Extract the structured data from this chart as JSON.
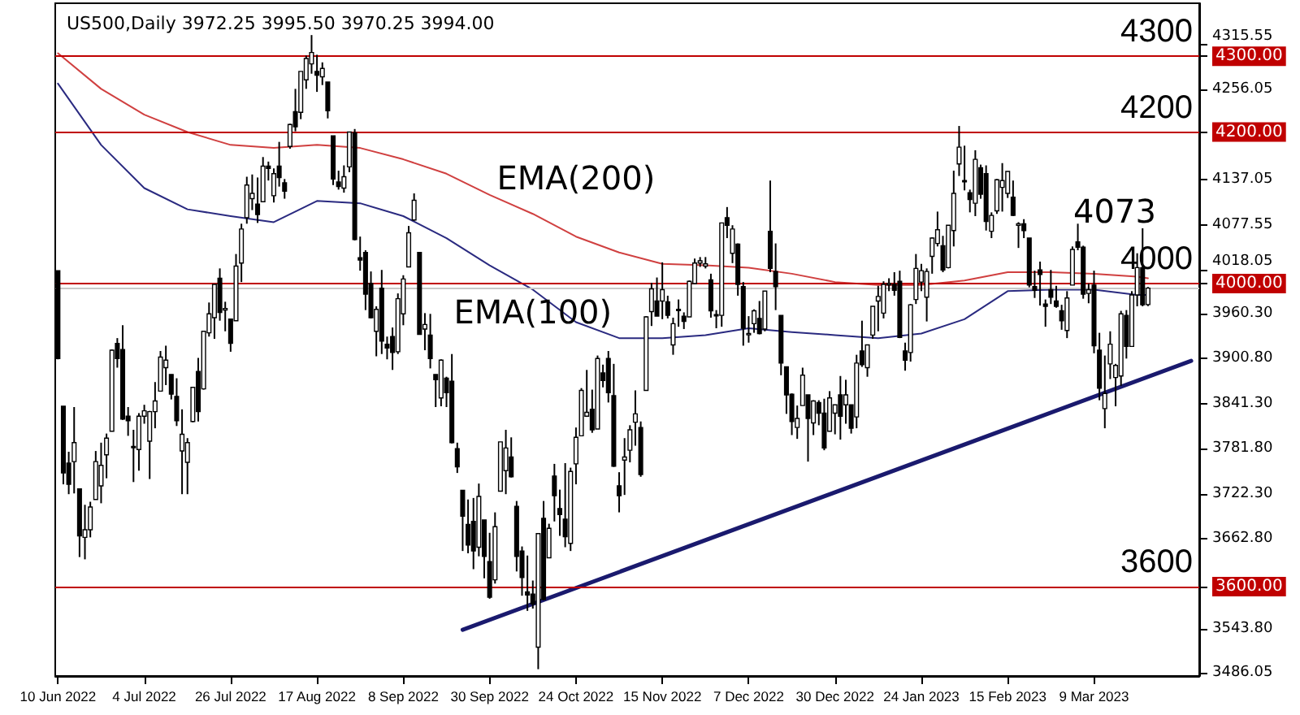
{
  "chart_data": {
    "type": "candlestick",
    "title": "US500,Daily 3972.25 3995.50 3970.25 3994.00",
    "categories": [
      "10 Jun 2022",
      null,
      null,
      null,
      null,
      null,
      null,
      null,
      null,
      null,
      null,
      null,
      null,
      null,
      null,
      null,
      "4 Jul 2022",
      null,
      null,
      null,
      null,
      null,
      null,
      null,
      null,
      null,
      null,
      null,
      null,
      null,
      null,
      null,
      "26 Jul 2022",
      null,
      null,
      null,
      null,
      null,
      null,
      null,
      null,
      null,
      null,
      null,
      null,
      null,
      null,
      null,
      "17 Aug 2022",
      null,
      null,
      null,
      null,
      null,
      null,
      null,
      null,
      null,
      null,
      null,
      null,
      null,
      null,
      null,
      "8 Sep 2022",
      null,
      null,
      null,
      null,
      null,
      null,
      null,
      null,
      null,
      null,
      null,
      null,
      null,
      null,
      null,
      "30 Sep 2022",
      null,
      null,
      null,
      null,
      null,
      null,
      null,
      null,
      null,
      null,
      null,
      null,
      null,
      null,
      null,
      "24 Oct 2022",
      null,
      null,
      null,
      null,
      null,
      null,
      null,
      null,
      null,
      null,
      null,
      null,
      null,
      null,
      null,
      "15 Nov 2022",
      null,
      null,
      null,
      null,
      null,
      null,
      null,
      null,
      null,
      null,
      null,
      null,
      null,
      null,
      null,
      "7 Dec 2022",
      null,
      null,
      null,
      null,
      null,
      null,
      null,
      null,
      null,
      null,
      null,
      null,
      null,
      null,
      null,
      "30 Dec 2022",
      null,
      null,
      null,
      null,
      null,
      null,
      null,
      null,
      null,
      null,
      null,
      null,
      null,
      null,
      null,
      "24 Jan 2023",
      null,
      null,
      null,
      null,
      null,
      null,
      null,
      null,
      null,
      null,
      null,
      null,
      null,
      null,
      null,
      "15 Feb 2023",
      null,
      null,
      null,
      null,
      null,
      null,
      null,
      null,
      null,
      null,
      null,
      null,
      null,
      null,
      null,
      "9 Mar 2023",
      null,
      null,
      null,
      null,
      null,
      null,
      null,
      null,
      null,
      null,
      null,
      null,
      null,
      null,
      null,
      null,
      null,
      null,
      null
    ],
    "ohlc": [
      [
        4017,
        4017,
        3900,
        3901
      ],
      [
        3838,
        3838,
        3735,
        3750
      ],
      [
        3763,
        3778,
        3722,
        3735
      ],
      [
        3765,
        3837,
        3723,
        3790
      ],
      [
        3729,
        3729,
        3639,
        3667
      ],
      [
        3665,
        3708,
        3636,
        3675
      ],
      [
        3675,
        3712,
        3665,
        3705
      ],
      [
        3715,
        3779,
        3715,
        3765
      ],
      [
        3733,
        3790,
        3710,
        3760
      ],
      [
        3774,
        3802,
        3743,
        3796
      ],
      [
        3805,
        3913,
        3805,
        3912
      ],
      [
        3921,
        3928,
        3889,
        3901
      ],
      [
        3913,
        3945,
        3820,
        3821
      ],
      [
        3825,
        3837,
        3799,
        3819
      ],
      [
        3785,
        3807,
        3738,
        3785
      ],
      [
        3781,
        3829,
        3753,
        3825
      ],
      [
        3825,
        3840,
        3815,
        3832
      ],
      [
        3792,
        3832,
        3742,
        3831
      ],
      [
        3831,
        3870,
        3809,
        3845
      ],
      [
        3858,
        3911,
        3858,
        3903
      ],
      [
        3889,
        3918,
        3866,
        3899
      ],
      [
        3880,
        3880,
        3847,
        3854
      ],
      [
        3851,
        3875,
        3812,
        3819
      ],
      [
        3779,
        3834,
        3722,
        3801
      ],
      [
        3764,
        3796,
        3722,
        3790
      ],
      [
        3818,
        3863,
        3817,
        3863
      ],
      [
        3884,
        3902,
        3818,
        3831
      ],
      [
        3861,
        3937,
        3860,
        3937
      ],
      [
        3935,
        3975,
        3930,
        3960
      ],
      [
        3955,
        3999,
        3927,
        3999
      ],
      [
        4007,
        4020,
        3951,
        3962
      ],
      [
        3965,
        3976,
        3937,
        3967
      ],
      [
        3953,
        3953,
        3910,
        3921
      ],
      [
        3951,
        4039,
        3951,
        4023
      ],
      [
        4027,
        4079,
        4002,
        4072
      ],
      [
        4087,
        4141,
        4079,
        4130
      ],
      [
        4112,
        4144,
        4097,
        4119
      ],
      [
        4105,
        4140,
        4080,
        4091
      ],
      [
        4108,
        4167,
        4108,
        4155
      ],
      [
        4155,
        4161,
        4136,
        4152
      ],
      [
        4116,
        4152,
        4107,
        4145
      ],
      [
        4155,
        4187,
        4128,
        4140
      ],
      [
        4133,
        4138,
        4112,
        4122
      ],
      [
        4181,
        4211,
        4178,
        4210
      ],
      [
        4227,
        4257,
        4201,
        4207
      ],
      [
        4226,
        4280,
        4217,
        4280
      ],
      [
        4269,
        4301,
        4257,
        4297
      ],
      [
        4290,
        4328,
        4277,
        4305
      ],
      [
        4280,
        4302,
        4253,
        4275
      ],
      [
        4273,
        4292,
        4262,
        4284
      ],
      [
        4266,
        4266,
        4218,
        4228
      ],
      [
        4195,
        4195,
        4130,
        4138
      ],
      [
        4134,
        4149,
        4124,
        4128
      ],
      [
        4126,
        4156,
        4120,
        4141
      ],
      [
        4154,
        4200,
        4147,
        4200
      ],
      [
        4199,
        4204,
        4057,
        4058
      ],
      [
        4034,
        4062,
        4017,
        4031
      ],
      [
        4041,
        4044,
        3965,
        3986
      ],
      [
        4000,
        4016,
        3954,
        3955
      ],
      [
        3937,
        3970,
        3904,
        3966
      ],
      [
        3994,
        4018,
        3907,
        3924
      ],
      [
        3920,
        3930,
        3900,
        3915
      ],
      [
        3930,
        3942,
        3886,
        3909
      ],
      [
        3910,
        3987,
        3907,
        3980
      ],
      [
        3960,
        4011,
        3945,
        4006
      ],
      [
        4022,
        4076,
        4022,
        4067
      ],
      [
        4084,
        4119,
        4083,
        4110
      ],
      [
        4041,
        4041,
        3933,
        3933
      ],
      [
        3940,
        3961,
        3912,
        3946
      ],
      [
        3932,
        3960,
        3888,
        3901
      ],
      [
        3880,
        3880,
        3837,
        3873
      ],
      [
        3849,
        3900,
        3838,
        3899
      ],
      [
        3875,
        3877,
        3837,
        3856
      ],
      [
        3871,
        3907,
        3789,
        3790
      ],
      [
        3782,
        3790,
        3750,
        3758
      ],
      [
        3727,
        3727,
        3647,
        3693
      ],
      [
        3682,
        3715,
        3644,
        3655
      ],
      [
        3686,
        3717,
        3623,
        3647
      ],
      [
        3652,
        3736,
        3640,
        3719
      ],
      [
        3688,
        3688,
        3611,
        3640
      ],
      [
        3633,
        3671,
        3584,
        3586
      ],
      [
        3609,
        3698,
        3604,
        3679
      ],
      [
        3726,
        3791,
        3726,
        3791
      ],
      [
        3753,
        3807,
        3722,
        3783
      ],
      [
        3771,
        3797,
        3744,
        3745
      ],
      [
        3706,
        3713,
        3620,
        3640
      ],
      [
        3647,
        3653,
        3588,
        3612
      ],
      [
        3593,
        3641,
        3568,
        3589
      ],
      [
        3590,
        3608,
        3571,
        3577
      ],
      [
        3520,
        3670,
        3491,
        3670
      ],
      [
        3690,
        3713,
        3582,
        3583
      ],
      [
        3638,
        3683,
        3638,
        3677
      ],
      [
        3746,
        3762,
        3686,
        3720
      ],
      [
        3703,
        3728,
        3667,
        3695
      ],
      [
        3689,
        3763,
        3652,
        3666
      ],
      [
        3657,
        3757,
        3647,
        3752
      ],
      [
        3762,
        3810,
        3735,
        3797
      ],
      [
        3799,
        3862,
        3799,
        3859
      ],
      [
        3825,
        3886,
        3824,
        3830
      ],
      [
        3834,
        3860,
        3803,
        3807
      ],
      [
        3808,
        3905,
        3808,
        3901
      ],
      [
        3882,
        3893,
        3863,
        3872
      ],
      [
        3901,
        3911,
        3843,
        3856
      ],
      [
        3852,
        3894,
        3758,
        3759
      ],
      [
        3733,
        3751,
        3698,
        3720
      ],
      [
        3767,
        3796,
        3721,
        3771
      ],
      [
        3780,
        3813,
        3764,
        3807
      ],
      [
        3817,
        3859,
        3786,
        3828
      ],
      [
        3810,
        3818,
        3745,
        3748
      ],
      [
        3859,
        3957,
        3859,
        3956
      ],
      [
        3963,
        4001,
        3944,
        3993
      ],
      [
        3977,
        4008,
        3957,
        3957
      ],
      [
        3977,
        4028,
        3953,
        3992
      ],
      [
        3976,
        3984,
        3954,
        3958
      ],
      [
        3919,
        3955,
        3906,
        3947
      ],
      [
        3966,
        3979,
        3943,
        3965
      ],
      [
        3957,
        3962,
        3940,
        3950
      ],
      [
        3956,
        4004,
        3956,
        4003
      ],
      [
        4000,
        4033,
        3999,
        4027
      ],
      [
        4027,
        4035,
        4022,
        4030
      ],
      [
        4023,
        4035,
        4020,
        4026
      ],
      [
        4005,
        4013,
        3955,
        3964
      ],
      [
        3959,
        3965,
        3941,
        3958
      ],
      [
        3958,
        4080,
        3943,
        4080
      ],
      [
        4087,
        4101,
        4060,
        4077
      ],
      [
        4040,
        4077,
        4027,
        4072
      ],
      [
        4052,
        4053,
        3984,
        3999
      ],
      [
        3996,
        4002,
        3918,
        3941
      ],
      [
        3934,
        3957,
        3922,
        3934
      ],
      [
        3947,
        3966,
        3935,
        3964
      ],
      [
        3954,
        3977,
        3933,
        3934
      ],
      [
        3940,
        3990,
        3937,
        3990
      ],
      [
        4069,
        4136,
        4015,
        4020
      ],
      [
        4016,
        4053,
        3965,
        3996
      ],
      [
        3958,
        3958,
        3879,
        3895
      ],
      [
        3890,
        3890,
        3828,
        3853
      ],
      [
        3854,
        3855,
        3800,
        3818
      ],
      [
        3810,
        3839,
        3795,
        3822
      ],
      [
        3839,
        3889,
        3839,
        3879
      ],
      [
        3853,
        3853,
        3765,
        3822
      ],
      [
        3816,
        3846,
        3800,
        3845
      ],
      [
        3843,
        3846,
        3813,
        3829
      ],
      [
        3829,
        3848,
        3780,
        3783
      ],
      [
        3805,
        3858,
        3805,
        3849
      ],
      [
        3829,
        3840,
        3801,
        3840
      ],
      [
        3853,
        3878,
        3794,
        3825
      ],
      [
        3840,
        3873,
        3815,
        3853
      ],
      [
        3840,
        3840,
        3802,
        3809
      ],
      [
        3824,
        3906,
        3809,
        3895
      ],
      [
        3911,
        3951,
        3890,
        3893
      ],
      [
        3889,
        3919,
        3877,
        3919
      ],
      [
        3932,
        3970,
        3927,
        3970
      ],
      [
        3977,
        3997,
        3937,
        3983
      ],
      [
        3961,
        4003,
        3954,
        3999
      ],
      [
        3999,
        4007,
        3990,
        4000
      ],
      [
        3999,
        4015,
        3984,
        3991
      ],
      [
        4003,
        4017,
        3928,
        3929
      ],
      [
        3911,
        3922,
        3885,
        3899
      ],
      [
        3909,
        3973,
        3897,
        3972
      ],
      [
        3979,
        4039,
        3973,
        4020
      ],
      [
        4002,
        4026,
        3990,
        4017
      ],
      [
        3982,
        4020,
        3950,
        4016
      ],
      [
        4036,
        4061,
        4013,
        4060
      ],
      [
        4053,
        4095,
        4049,
        4071
      ],
      [
        4050,
        4063,
        4015,
        4018
      ],
      [
        4021,
        4077,
        4020,
        4077
      ],
      [
        4070,
        4149,
        4049,
        4119
      ],
      [
        4158,
        4208,
        4142,
        4180
      ],
      [
        4136,
        4182,
        4123,
        4136
      ],
      [
        4120,
        4124,
        4094,
        4111
      ],
      [
        4106,
        4176,
        4089,
        4164
      ],
      [
        4153,
        4157,
        4112,
        4118
      ],
      [
        4145,
        4156,
        4070,
        4082
      ],
      [
        4069,
        4094,
        4060,
        4090
      ],
      [
        4096,
        4138,
        4092,
        4137
      ],
      [
        4127,
        4159,
        4095,
        4136
      ],
      [
        4119,
        4148,
        4113,
        4148
      ],
      [
        4114,
        4136,
        4089,
        4090
      ],
      [
        4077,
        4081,
        4047,
        4079
      ],
      [
        4079,
        4085,
        4060,
        4070
      ],
      [
        4060,
        4060,
        3995,
        3998
      ],
      [
        3996,
        4017,
        3981,
        3991
      ],
      [
        4018,
        4029,
        3971,
        4012
      ],
      [
        3973,
        3979,
        3943,
        3970
      ],
      [
        3992,
        4018,
        3973,
        3982
      ],
      [
        3977,
        3997,
        3968,
        3970
      ],
      [
        3964,
        3972,
        3939,
        3951
      ],
      [
        3938,
        3990,
        3928,
        3981
      ],
      [
        3998,
        4049,
        3998,
        4045
      ],
      [
        4055,
        4079,
        4044,
        4048
      ],
      [
        4048,
        4050,
        3980,
        3986
      ],
      [
        3987,
        4000,
        3974,
        3992
      ],
      [
        3998,
        4017,
        3908,
        3918
      ],
      [
        3912,
        3935,
        3846,
        3862
      ],
      [
        3835,
        3905,
        3809,
        3855
      ],
      [
        3894,
        3937,
        3874,
        3920
      ],
      [
        3876,
        3894,
        3838,
        3892
      ],
      [
        3878,
        3964,
        3865,
        3960
      ],
      [
        3958,
        3965,
        3901,
        3917
      ],
      [
        3917,
        3990,
        3917,
        3985
      ],
      [
        3985,
        4040,
        3970,
        4021
      ],
      [
        4021,
        4073,
        3970,
        3972
      ],
      [
        3972.25,
        3995.5,
        3970.25,
        3994
      ],
      null,
      null,
      null,
      null,
      null,
      null,
      null,
      null,
      null
    ],
    "series": [
      {
        "type": "line",
        "name": "EMA(200)",
        "color": "#d04040",
        "values": [
          4304,
          null,
          null,
          null,
          null,
          null,
          null,
          null,
          4257,
          null,
          null,
          null,
          null,
          null,
          null,
          null,
          4223,
          null,
          null,
          null,
          null,
          null,
          null,
          null,
          4200,
          null,
          null,
          null,
          null,
          null,
          null,
          null,
          4183,
          null,
          null,
          null,
          null,
          null,
          null,
          null,
          4179,
          null,
          null,
          null,
          null,
          null,
          null,
          null,
          4183,
          null,
          null,
          null,
          null,
          null,
          null,
          null,
          4179,
          null,
          null,
          null,
          null,
          null,
          null,
          null,
          4164,
          null,
          null,
          null,
          null,
          null,
          null,
          null,
          4145,
          null,
          null,
          null,
          null,
          null,
          null,
          null,
          4117,
          null,
          null,
          null,
          null,
          null,
          null,
          null,
          4092,
          null,
          null,
          null,
          null,
          null,
          null,
          null,
          4062,
          null,
          null,
          null,
          null,
          null,
          null,
          null,
          4041,
          null,
          null,
          null,
          null,
          null,
          null,
          null,
          4026,
          null,
          null,
          null,
          null,
          null,
          null,
          null,
          4024,
          null,
          null,
          null,
          null,
          null,
          null,
          null,
          4021,
          null,
          null,
          null,
          null,
          null,
          null,
          null,
          4013,
          null,
          null,
          null,
          null,
          null,
          null,
          null,
          4002,
          null,
          null,
          null,
          null,
          null,
          null,
          null,
          3998,
          null,
          null,
          null,
          null,
          null,
          null,
          null,
          3998,
          null,
          null,
          null,
          null,
          null,
          null,
          null,
          4004,
          null,
          null,
          null,
          null,
          null,
          null,
          null,
          4015,
          null,
          null,
          null,
          null,
          null,
          null,
          null,
          4015,
          null,
          null,
          null,
          null,
          null,
          null,
          null,
          4013,
          null,
          null,
          null,
          null,
          null,
          null,
          null,
          4009,
          null,
          4007,
          null,
          null,
          null,
          null,
          null,
          null,
          null,
          null,
          null
        ]
      },
      {
        "type": "line",
        "name": "EMA(100)",
        "color": "#2a2a80",
        "values": [
          4264,
          null,
          null,
          null,
          null,
          null,
          null,
          null,
          4183,
          null,
          null,
          null,
          null,
          null,
          null,
          null,
          4126,
          null,
          null,
          null,
          null,
          null,
          null,
          null,
          4098,
          null,
          null,
          null,
          null,
          null,
          null,
          null,
          4089,
          null,
          null,
          null,
          null,
          null,
          null,
          null,
          4081,
          null,
          null,
          null,
          null,
          null,
          null,
          null,
          4109,
          null,
          null,
          null,
          null,
          null,
          null,
          null,
          4106,
          null,
          null,
          null,
          null,
          null,
          null,
          null,
          4089,
          null,
          null,
          null,
          null,
          null,
          null,
          null,
          4060,
          null,
          null,
          null,
          null,
          null,
          null,
          null,
          4024,
          null,
          null,
          null,
          null,
          null,
          null,
          null,
          3992,
          null,
          null,
          null,
          null,
          null,
          null,
          null,
          3949,
          null,
          null,
          null,
          null,
          null,
          null,
          null,
          3928,
          null,
          null,
          null,
          null,
          null,
          null,
          null,
          3928,
          null,
          null,
          null,
          null,
          null,
          null,
          null,
          3932,
          null,
          null,
          null,
          null,
          null,
          null,
          null,
          3941,
          null,
          null,
          null,
          null,
          null,
          null,
          null,
          3936,
          null,
          null,
          null,
          null,
          null,
          null,
          null,
          3932,
          null,
          null,
          null,
          null,
          null,
          null,
          null,
          3928,
          null,
          null,
          null,
          null,
          null,
          null,
          null,
          3934,
          null,
          null,
          null,
          null,
          null,
          null,
          null,
          3953,
          null,
          null,
          null,
          null,
          null,
          null,
          null,
          3990,
          null,
          null,
          null,
          null,
          null,
          null,
          null,
          3992,
          null,
          null,
          null,
          null,
          null,
          null,
          null,
          3992,
          null,
          null,
          null,
          null,
          null,
          null,
          null,
          3985,
          null,
          3985,
          null,
          null,
          null,
          null,
          null,
          null,
          null,
          null,
          null
        ]
      },
      {
        "type": "line",
        "color": "#1a1a6e",
        "values": [
          null,
          null,
          null,
          null,
          null,
          null,
          null,
          null,
          null,
          null,
          null,
          null,
          null,
          null,
          null,
          null,
          null,
          null,
          null,
          null,
          null,
          null,
          null,
          null,
          null,
          null,
          null,
          null,
          null,
          null,
          null,
          null,
          null,
          null,
          null,
          null,
          null,
          null,
          null,
          null,
          null,
          null,
          null,
          null,
          null,
          null,
          null,
          null,
          null,
          null,
          null,
          null,
          null,
          null,
          null,
          null,
          null,
          null,
          null,
          null,
          null,
          null,
          null,
          null,
          null,
          null,
          null,
          null,
          null,
          null,
          null,
          null,
          null,
          null,
          null,
          3543,
          null,
          null,
          null,
          null,
          null,
          null,
          null,
          null,
          null,
          null,
          null,
          null,
          null,
          null,
          null,
          null,
          null,
          null,
          null,
          null,
          null,
          null,
          null,
          null,
          null,
          null,
          null,
          null,
          null,
          null,
          null,
          null,
          null,
          null,
          null,
          null,
          null,
          null,
          null,
          null,
          null,
          null,
          null,
          null,
          null,
          null,
          null,
          null,
          null,
          null,
          null,
          null,
          null,
          null,
          null,
          null,
          null,
          null,
          null,
          null,
          null,
          null,
          null,
          null,
          null,
          null,
          null,
          null,
          null,
          null,
          null,
          null,
          null,
          null,
          null,
          null,
          null,
          null,
          null,
          null,
          null,
          null,
          null,
          null,
          null,
          null,
          null,
          null,
          null,
          null,
          null,
          null,
          null,
          null,
          null,
          null,
          null,
          null,
          null,
          null,
          null,
          null,
          null,
          null,
          null,
          null,
          null,
          null,
          null,
          null,
          null,
          null,
          null,
          null,
          null,
          null,
          null,
          null,
          null,
          null,
          null,
          null,
          null,
          null,
          null,
          null,
          null,
          null,
          null,
          null,
          null,
          null,
          null,
          null,
          3898,
          null
        ]
      }
    ],
    "ylim": [
      3482,
      4370
    ],
    "yticks": [
      4315.55,
      4256.05,
      {
        "value": 4300,
        "label": "4300.00"
      },
      {
        "value": 4200,
        "label": "4200.00"
      },
      4137.05,
      4077.55,
      4018.05,
      {
        "value": 4000,
        "label": "4000.00"
      },
      {
        "value": 3960.3,
        "label": "3960.30"
      },
      {
        "value": 3900.8,
        "label": "3900.80"
      },
      {
        "value": 3841.3,
        "label": "3841.30"
      },
      {
        "value": 3781.8,
        "label": "3781.80"
      },
      {
        "value": 3722.3,
        "label": "3722.30"
      },
      {
        "value": 3662.8,
        "label": "3662.80"
      },
      {
        "value": 3600,
        "label": "3600.00"
      },
      {
        "value": 3543.8,
        "label": "3543.80"
      },
      3486.05
    ],
    "ref_lines": [
      {
        "axis": "y",
        "value": 4300,
        "label": "4300",
        "color": "#c00000"
      },
      {
        "axis": "y",
        "value": 4200,
        "label": "4200",
        "color": "#c00000"
      },
      {
        "axis": "y",
        "value": 4000,
        "label": "4000",
        "color": "#c00000"
      },
      {
        "axis": "y",
        "value": 3600,
        "label": "3600",
        "color": "#c00000"
      },
      {
        "axis": "y",
        "value": 3994,
        "color": "#c8c8c8"
      }
    ],
    "annotations": [
      "4073"
    ],
    "grid": false,
    "marker": "none"
  }
}
